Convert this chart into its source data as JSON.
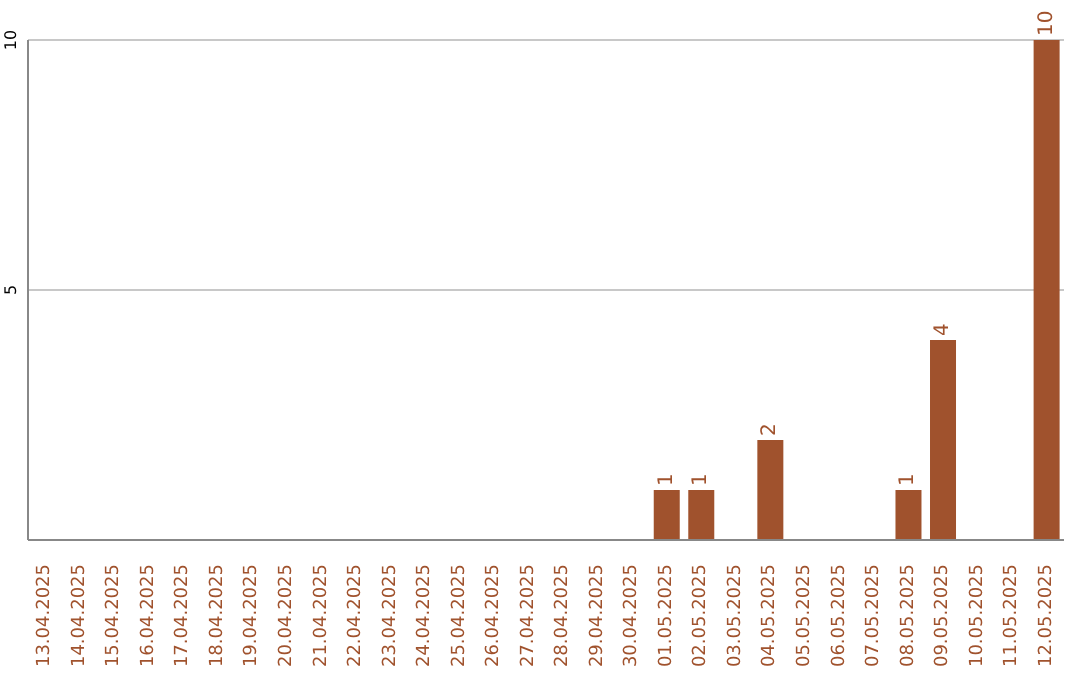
{
  "chart_data": {
    "type": "bar",
    "categories": [
      "13.04.2025",
      "14.04.2025",
      "15.04.2025",
      "16.04.2025",
      "17.04.2025",
      "18.04.2025",
      "19.04.2025",
      "20.04.2025",
      "21.04.2025",
      "22.04.2025",
      "23.04.2025",
      "24.04.2025",
      "25.04.2025",
      "26.04.2025",
      "27.04.2025",
      "28.04.2025",
      "29.04.2025",
      "30.04.2025",
      "01.05.2025",
      "02.05.2025",
      "03.05.2025",
      "04.05.2025",
      "05.05.2025",
      "06.05.2025",
      "07.05.2025",
      "08.05.2025",
      "09.05.2025",
      "10.05.2025",
      "11.05.2025",
      "12.05.2025"
    ],
    "values": [
      0,
      0,
      0,
      0,
      0,
      0,
      0,
      0,
      0,
      0,
      0,
      0,
      0,
      0,
      0,
      0,
      0,
      0,
      1,
      1,
      0,
      2,
      0,
      0,
      0,
      1,
      4,
      0,
      0,
      10
    ],
    "value_labels": [
      null,
      null,
      null,
      null,
      null,
      null,
      null,
      null,
      null,
      null,
      null,
      null,
      null,
      null,
      null,
      null,
      null,
      null,
      "1",
      "1",
      null,
      "2",
      null,
      null,
      null,
      "1",
      "4",
      null,
      null,
      "10"
    ],
    "color": "#a0522d",
    "ylim": [
      0,
      10
    ],
    "yticks": [
      {
        "value": 0,
        "label": null
      },
      5,
      10
    ],
    "grid": "y"
  }
}
